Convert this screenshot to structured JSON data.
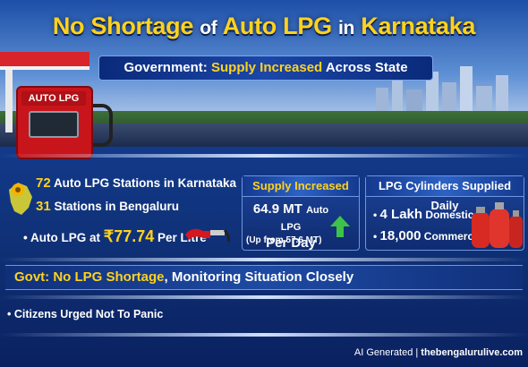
{
  "title": {
    "part1": "No Shortage",
    "part2": "of",
    "part3": "Auto LPG",
    "part4": "in",
    "part5": "Karnataka"
  },
  "subtitle": {
    "part1": "Government:",
    "part2": "Supply Increased",
    "part3": "Across State"
  },
  "pump_label": "AUTO LPG",
  "stats": {
    "stations_count": "72",
    "stations_text": "Auto LPG Stations in Karnataka",
    "bengaluru_count": "31",
    "bengaluru_text": "Stations in Bengaluru",
    "price_prefix": "Auto LPG at",
    "price_value": "₹77.74",
    "price_suffix": "Per Litre"
  },
  "supply_box": {
    "heading": "Supply Increased",
    "value": "64.9 MT",
    "value_unit": "Auto LPG",
    "value_suffix": "Per Day",
    "previous": "(Up from 57.6 MT)"
  },
  "cylinders_box": {
    "heading": "LPG Cylinders Supplied Daily",
    "domestic_value": "4 Lakh",
    "domestic_label": "Domestic",
    "commercial_value": "18,000",
    "commercial_label": "Commercial"
  },
  "banner": {
    "part1": "Govt:",
    "part2": "No LPG Shortage",
    "part3": ", Monitoring Situation Closely"
  },
  "note": "Citizens Urged Not To Panic",
  "footer": {
    "ai": "AI Generated",
    "sep": "|",
    "site": "thebengalurulive.com"
  },
  "colors": {
    "accent": "#ffd21e",
    "background": "#123a8a",
    "pump": "#c8141b"
  }
}
